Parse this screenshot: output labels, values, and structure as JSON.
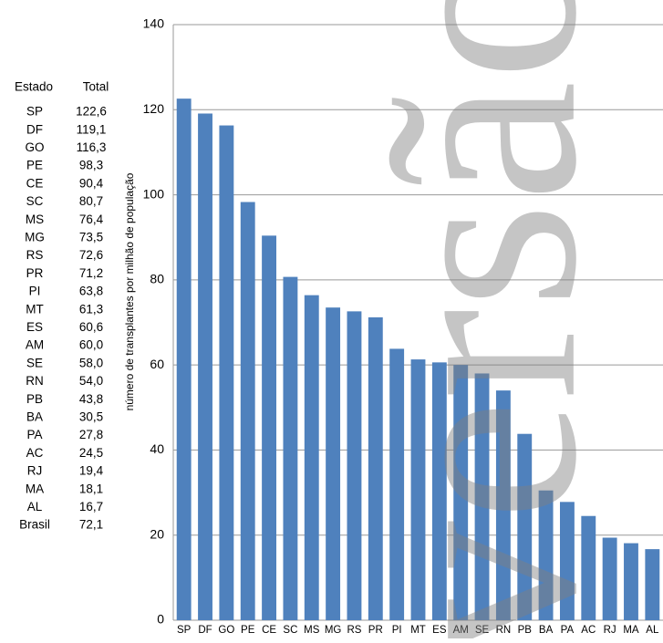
{
  "chart_data": {
    "type": "bar",
    "y_label": "número de transplantes por milhão de população",
    "watermark": "versão",
    "categories": [
      "SP",
      "DF",
      "GO",
      "PE",
      "CE",
      "SC",
      "MS",
      "MG",
      "RS",
      "PR",
      "PI",
      "MT",
      "ES",
      "AM",
      "SE",
      "RN",
      "PB",
      "BA",
      "PA",
      "AC",
      "RJ",
      "MA",
      "AL"
    ],
    "values": [
      122.6,
      119.1,
      116.3,
      98.3,
      90.4,
      80.7,
      76.4,
      73.5,
      72.6,
      71.2,
      63.8,
      61.3,
      60.6,
      60.0,
      58.0,
      54.0,
      43.8,
      30.5,
      27.8,
      24.5,
      19.4,
      18.1,
      16.7
    ],
    "color": "#4f81bd",
    "ylim": [
      0,
      140
    ],
    "yticks": [
      0,
      20,
      40,
      60,
      80,
      100,
      120,
      140
    ],
    "grid": true
  },
  "table": {
    "header": [
      "Estado",
      "Total"
    ],
    "rows": [
      [
        "SP",
        "122,6"
      ],
      [
        "DF",
        "119,1"
      ],
      [
        "GO",
        "116,3"
      ],
      [
        "PE",
        "98,3"
      ],
      [
        "CE",
        "90,4"
      ],
      [
        "SC",
        "80,7"
      ],
      [
        "MS",
        "76,4"
      ],
      [
        "MG",
        "73,5"
      ],
      [
        "RS",
        "72,6"
      ],
      [
        "PR",
        "71,2"
      ],
      [
        "PI",
        "63,8"
      ],
      [
        "MT",
        "61,3"
      ],
      [
        "ES",
        "60,6"
      ],
      [
        "AM",
        "60,0"
      ],
      [
        "SE",
        "58,0"
      ],
      [
        "RN",
        "54,0"
      ],
      [
        "PB",
        "43,8"
      ],
      [
        "BA",
        "30,5"
      ],
      [
        "PA",
        "27,8"
      ],
      [
        "AC",
        "24,5"
      ],
      [
        "RJ",
        "19,4"
      ],
      [
        "MA",
        "18,1"
      ],
      [
        "AL",
        "16,7"
      ],
      [
        "Brasil",
        "72,1"
      ]
    ]
  }
}
